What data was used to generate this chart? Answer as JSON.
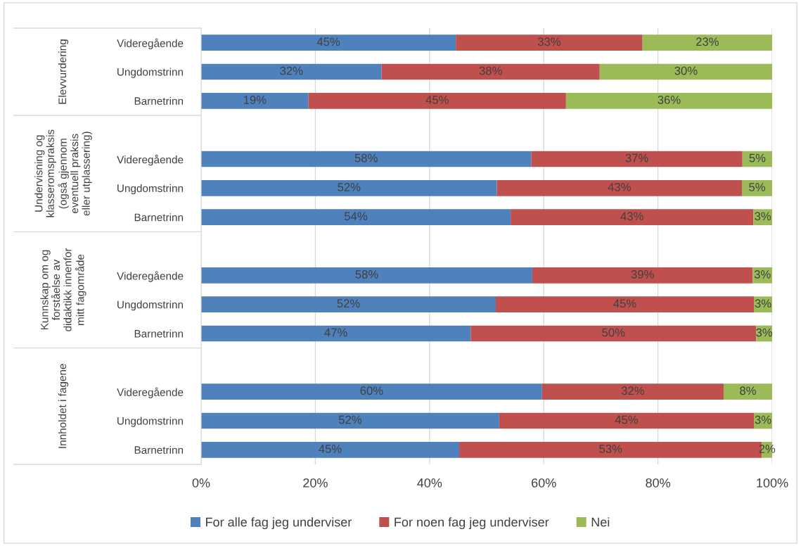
{
  "chart_data": {
    "type": "bar",
    "orientation": "horizontal",
    "stacked": true,
    "categories": [
      "Videregående",
      "Ungdomstrinn",
      "Barnetrinn",
      null,
      "Videregående",
      "Ungdomstrinn",
      "Barnetrinn",
      null,
      "Videregående",
      "Ungdomstrinn",
      "Barnetrinn",
      null,
      "Videregående",
      "Ungdomstrinn",
      "Barnetrinn"
    ],
    "series": [
      {
        "name": "For alle fag jeg underviser",
        "color": "#4f81bd",
        "values": [
          44.6,
          31.6,
          18.8,
          null,
          57.8,
          51.8,
          54.2,
          null,
          58.0,
          51.6,
          47.2,
          null,
          59.7,
          52.2,
          45.2
        ],
        "value_labels": [
          "45%",
          "32%",
          "19%",
          null,
          "58%",
          "52%",
          "54%",
          null,
          "58%",
          "52%",
          "47%",
          null,
          "60%",
          "52%",
          "45%"
        ]
      },
      {
        "name": "For noen fag jeg underviser",
        "color": "#c0504d",
        "values": [
          32.7,
          38.2,
          45.1,
          null,
          37.0,
          42.9,
          42.5,
          null,
          38.6,
          45.2,
          50.0,
          null,
          31.8,
          44.6,
          53.0
        ],
        "value_labels": [
          "33%",
          "38%",
          "45%",
          null,
          "37%",
          "43%",
          "43%",
          null,
          "39%",
          "45%",
          "50%",
          null,
          "32%",
          "45%",
          "53%"
        ]
      },
      {
        "name": "Nei",
        "color": "#9bbb59",
        "values": [
          22.7,
          30.2,
          36.1,
          null,
          5.2,
          5.3,
          3.3,
          null,
          3.4,
          3.2,
          2.8,
          null,
          8.5,
          3.2,
          1.8
        ],
        "value_labels": [
          "23%",
          "30%",
          "36%",
          null,
          "5%",
          "5%",
          "3%",
          null,
          "3%",
          "3%",
          "3%",
          null,
          "8%",
          "3%",
          "2%"
        ]
      }
    ],
    "xlim": [
      0,
      100
    ],
    "xticks": [
      {
        "value": 0,
        "label": "0%"
      },
      {
        "value": 20,
        "label": "20%"
      },
      {
        "value": 40,
        "label": "40%"
      },
      {
        "value": 60,
        "label": "60%"
      },
      {
        "value": 80,
        "label": "80%"
      },
      {
        "value": 100,
        "label": "100%"
      }
    ],
    "annotations": [
      "Elevvurdering",
      "Undervisning og\nklasseromspraksis\n(også gjennom\neventuell praksis\neller utplassering)",
      "Kunnskap om og\nforståelse av\ndidaktikk innenfor\nmitt fagområde",
      "Innholdet i fagene"
    ],
    "grid": "x",
    "legend": "bottom"
  }
}
